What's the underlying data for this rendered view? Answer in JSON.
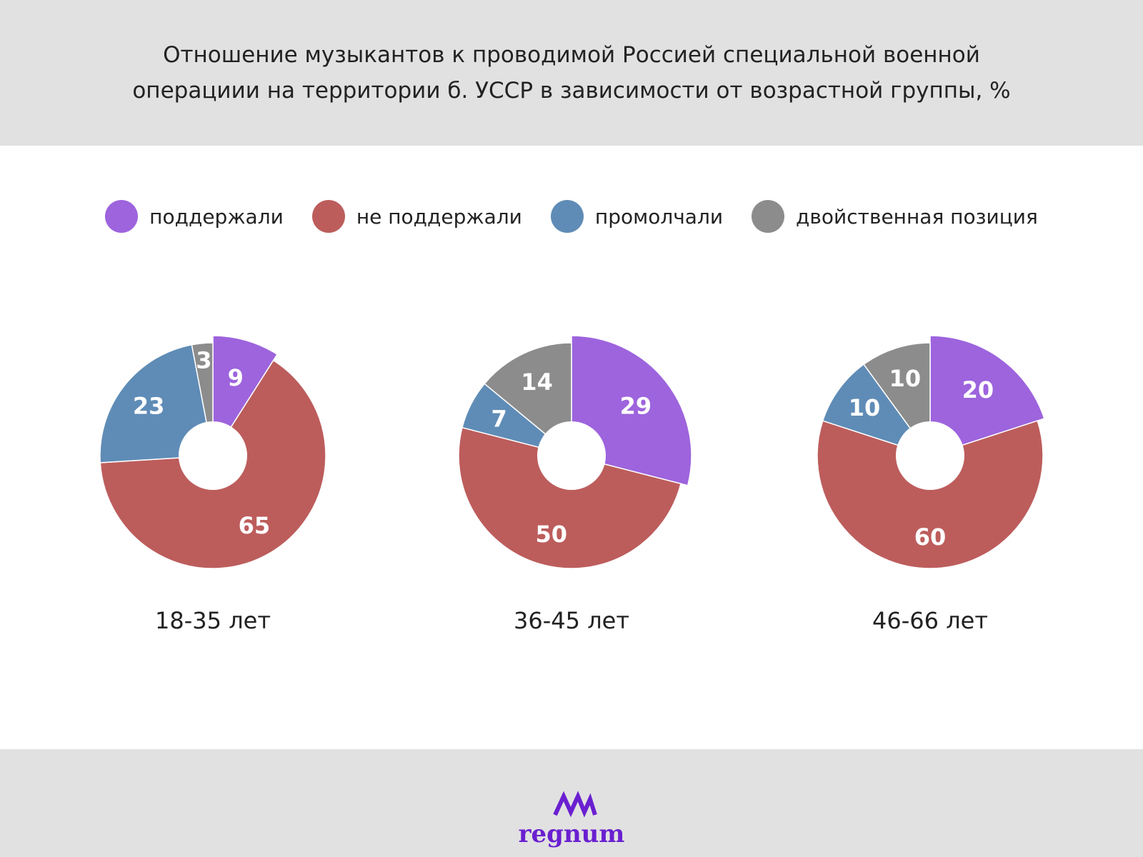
{
  "title": [
    "Отношение музыкантов к проводимой Россией специальной военной",
    "операциии на территории б. УССР в зависимости от возрастной группы, %"
  ],
  "logo": "regnum",
  "chart_data": {
    "type": "pie",
    "title": "Отношение музыкантов к проводимой Россией специальной военной операциии на территории б. УССР в зависимости от возрастной группы, %",
    "legend_placement": "top",
    "categories": [
      "поддержали",
      "не поддержали",
      "промолчали",
      "двойственная позиция"
    ],
    "colors": [
      "#9d64dd",
      "#bc5d5c",
      "#5f8cb6",
      "#8c8c8c"
    ],
    "charts": [
      {
        "label": "18-35 лет",
        "values": [
          9,
          65,
          23,
          3
        ]
      },
      {
        "label": "36-45 лет",
        "values": [
          29,
          50,
          7,
          14
        ]
      },
      {
        "label": "46-66 лет",
        "values": [
          20,
          60,
          10,
          10
        ]
      }
    ]
  }
}
